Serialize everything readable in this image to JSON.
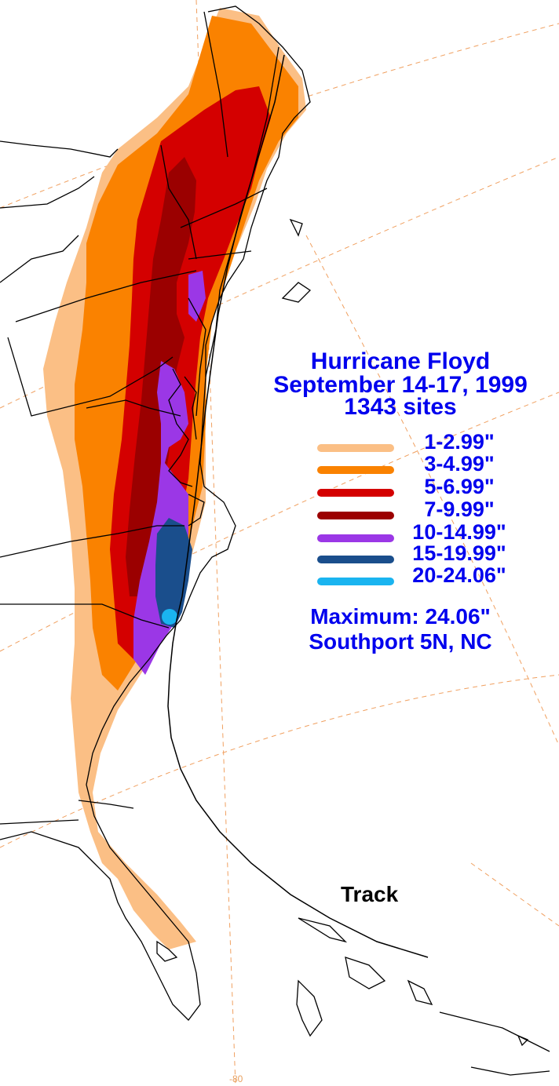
{
  "title": {
    "line1": "Hurricane Floyd",
    "line2": "September 14-17, 1999",
    "line3": "1343 sites"
  },
  "legend": [
    {
      "label": "1-2.99\"",
      "color": "#fbbf85"
    },
    {
      "label": "3-4.99\"",
      "color": "#fa8200"
    },
    {
      "label": "5-6.99\"",
      "color": "#d40000"
    },
    {
      "label": "7-9.99\"",
      "color": "#9b0000"
    },
    {
      "label": "10-14.99\"",
      "color": "#9b37e6"
    },
    {
      "label": "15-19.99\"",
      "color": "#1a4e8c"
    },
    {
      "label": "20-24.06\"",
      "color": "#1ab4f0"
    }
  ],
  "maximum": {
    "line1": "Maximum:  24.06\"",
    "line2": "Southport 5N, NC"
  },
  "track_label": "Track",
  "longitude_label": "-80",
  "colors": {
    "outline": "#000000",
    "gridline": "#f0a060",
    "text": "#0000ee"
  }
}
